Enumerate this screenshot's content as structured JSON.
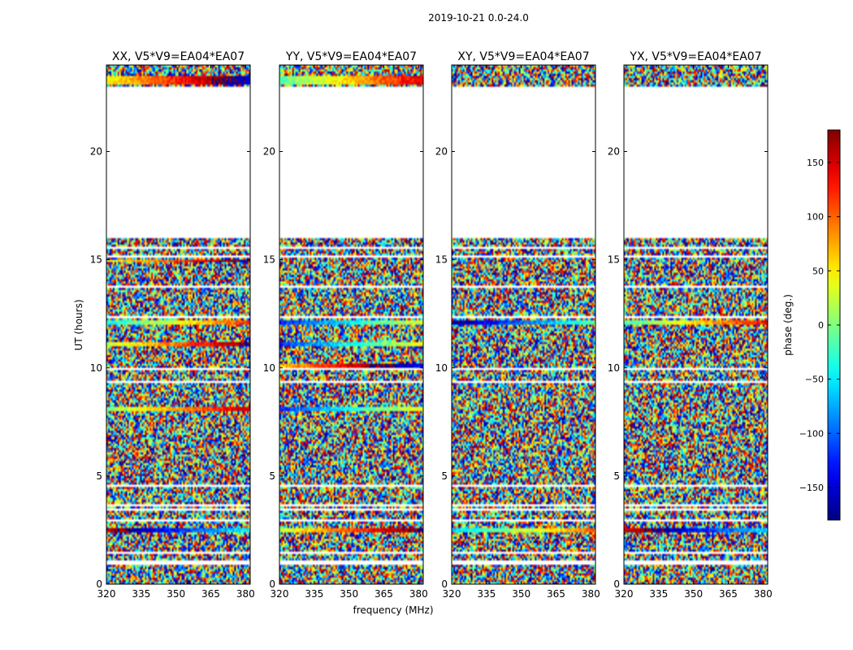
{
  "suptitle": "2019-10-21 0.0-24.0",
  "chart_data": {
    "type": "heatmap",
    "xlabel": "frequency (MHz)",
    "ylabel": "UT (hours)",
    "xlim": [
      320,
      382
    ],
    "ylim": [
      0,
      24
    ],
    "xticks": [
      320,
      335,
      350,
      365,
      380
    ],
    "yticks": [
      0,
      5,
      10,
      15,
      20
    ],
    "panels": [
      {
        "title": "XX, V5*V9=EA04*EA07",
        "coherent_bands": [
          [
            2.4,
            2.6
          ],
          [
            8.0,
            8.2
          ],
          [
            11.0,
            11.2
          ],
          [
            12.0,
            12.2
          ],
          [
            14.9,
            15.0
          ],
          [
            23.1,
            23.5
          ]
        ]
      },
      {
        "title": "YY, V5*V9=EA04*EA07",
        "coherent_bands": [
          [
            2.4,
            2.6
          ],
          [
            8.0,
            8.2
          ],
          [
            10.0,
            10.2
          ],
          [
            11.0,
            11.2
          ],
          [
            12.0,
            12.2
          ],
          [
            23.1,
            23.5
          ]
        ]
      },
      {
        "title": "XY, V5*V9=EA04*EA07",
        "coherent_bands": [
          [
            2.4,
            2.6
          ],
          [
            12.0,
            12.2
          ]
        ]
      },
      {
        "title": "YX, V5*V9=EA04*EA07",
        "coherent_bands": [
          [
            2.4,
            2.6
          ],
          [
            12.0,
            12.2
          ]
        ]
      }
    ],
    "data_gaps_hours": [
      [
        0.94,
        1.08
      ],
      [
        1.4,
        1.46
      ],
      [
        1.66,
        1.72
      ],
      [
        2.92,
        2.98
      ],
      [
        3.42,
        3.5
      ],
      [
        3.6,
        3.66
      ],
      [
        4.52,
        4.6
      ],
      [
        6.18,
        6.24
      ],
      [
        6.68,
        6.74
      ],
      [
        7.45,
        7.5
      ],
      [
        8.38,
        8.42
      ],
      [
        9.32,
        9.38
      ],
      [
        9.92,
        9.98
      ],
      [
        11.28,
        11.34
      ],
      [
        12.34,
        12.4
      ],
      [
        13.18,
        13.24
      ],
      [
        13.7,
        13.76
      ],
      [
        14.18,
        14.24
      ],
      [
        14.58,
        14.64
      ],
      [
        15.12,
        15.18
      ],
      [
        15.5,
        15.56
      ],
      [
        15.78,
        15.84
      ],
      [
        16.0,
        23.0
      ]
    ],
    "colorbar": {
      "label": "phase (deg.)",
      "range": [
        -180,
        180
      ],
      "ticks": [
        -150,
        -100,
        -50,
        0,
        50,
        100,
        150
      ],
      "tick_labels": [
        "−150",
        "−100",
        "−50",
        "0",
        "50",
        "100",
        "150"
      ],
      "colormap": "jet"
    }
  }
}
